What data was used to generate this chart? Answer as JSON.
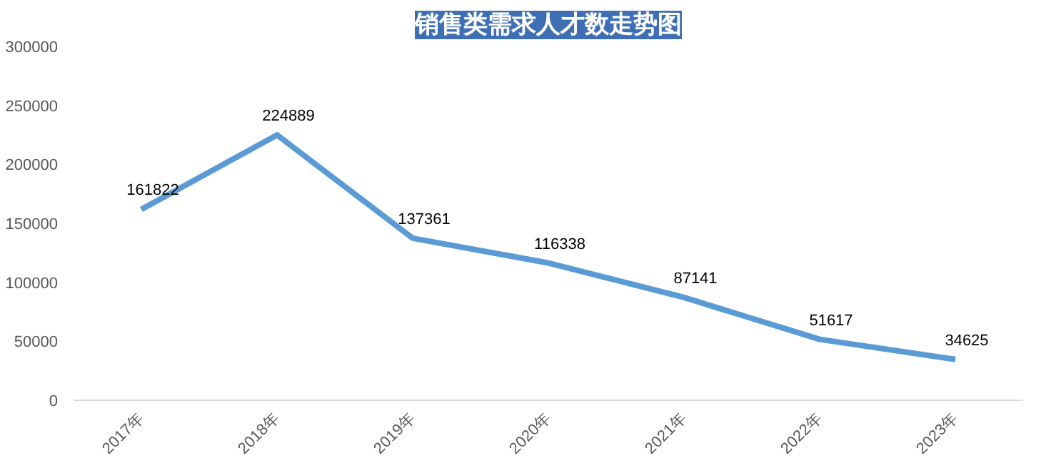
{
  "chart_data": {
    "type": "line",
    "title": "销售类需求人才数走势图",
    "categories": [
      "2017年",
      "2018年",
      "2019年",
      "2020年",
      "2021年",
      "2022年",
      "2023年"
    ],
    "series": [
      {
        "color": "#5b9bd5",
        "values": [
          161822,
          224889,
          137361,
          116338,
          87141,
          51617,
          34625
        ]
      }
    ],
    "ylim": [
      0,
      300000
    ],
    "yticks": [
      0,
      50000,
      100000,
      150000,
      200000,
      250000,
      300000
    ],
    "data_labels": true,
    "grid": false,
    "marker": "none",
    "line_style": "solid"
  }
}
